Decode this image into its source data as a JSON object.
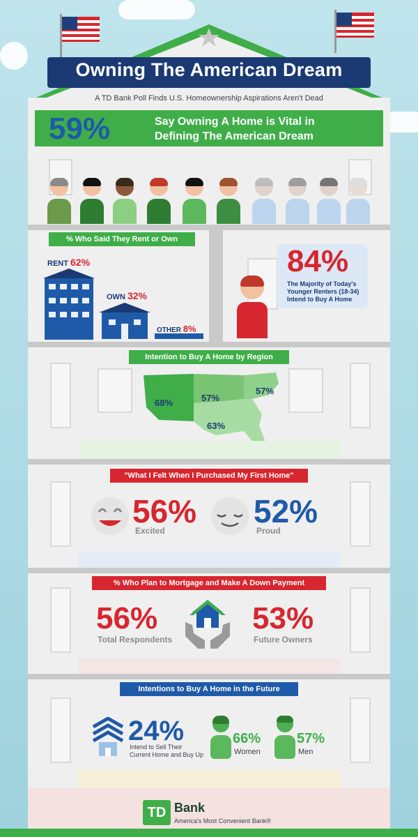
{
  "header": {
    "title": "Owning The American Dream",
    "subtitle": "A TD Bank Poll Finds U.S. Homeownership Aspirations Aren't Dead"
  },
  "hero": {
    "percent": "59%",
    "line1": "Say Owning A Home is Vital in",
    "line2": "Defining The American Dream"
  },
  "rent_own": {
    "ribbon": "% Who Said They Rent or Own",
    "rent_label": "RENT",
    "rent_pct": "62%",
    "own_label": "OWN",
    "own_pct": "32%",
    "other_label": "OTHER",
    "other_pct": "8%",
    "renters_pct": "84%",
    "renters_line1": "The Majority of Today's",
    "renters_line2": "Younger Renters (18-34)",
    "renters_line3": "Intend to Buy A Home"
  },
  "region": {
    "ribbon": "Intention to Buy A Home by Region",
    "west": "68%",
    "midwest": "57%",
    "northeast": "57%",
    "south": "63%"
  },
  "feelings": {
    "ribbon": "\"What I Felt When I Purchased My First Home\"",
    "excited_pct": "56%",
    "excited_label": "Excited",
    "proud_pct": "52%",
    "proud_label": "Proud"
  },
  "mortgage": {
    "ribbon": "% Who Plan to Mortgage and Make A Down Payment",
    "total_pct": "56%",
    "total_label": "Total Respondents",
    "future_pct": "53%",
    "future_label": "Future Owners"
  },
  "future": {
    "ribbon": "Intentions to Buy A Home in the Future",
    "sell_pct": "24%",
    "sell_line1": "Intend to Sell Their",
    "sell_line2": "Current Home and Buy Up",
    "women_pct": "66%",
    "women_label": "Women",
    "men_pct": "57%",
    "men_label": "Men"
  },
  "footer": {
    "logo": "TD",
    "bank": "Bank",
    "tagline": "America's Most Convenient Bank®"
  },
  "colors": {
    "navy": "#1b3a73",
    "green": "#3fae49",
    "blue": "#1f5aa8",
    "red": "#d7262f"
  }
}
